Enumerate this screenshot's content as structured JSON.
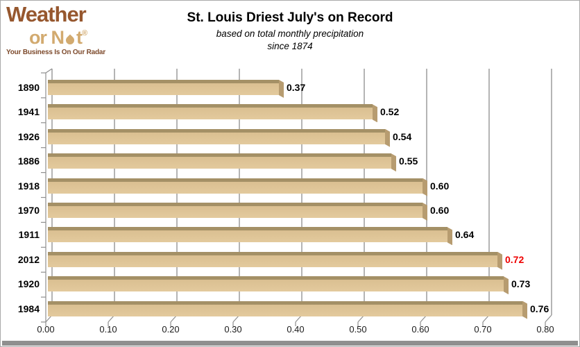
{
  "logo": {
    "line1": "Weather",
    "line2_prefix": "or N",
    "line2_suffix": "t",
    "registered": "®",
    "tagline": "Your Business Is On Our Radar"
  },
  "header": {
    "title": "St. Louis Driest July's on Record",
    "subtitle1": "based on total monthly precipitation",
    "subtitle2": "since 1874"
  },
  "chart_data": {
    "type": "bar",
    "orientation": "horizontal",
    "title": "St. Louis Driest July's on Record",
    "subtitle": "based on total monthly precipitation since 1874",
    "categories": [
      "1890",
      "1941",
      "1926",
      "1886",
      "1918",
      "1970",
      "1911",
      "2012",
      "1920",
      "1984"
    ],
    "values": [
      0.37,
      0.52,
      0.54,
      0.55,
      0.6,
      0.6,
      0.64,
      0.72,
      0.73,
      0.76
    ],
    "value_labels": [
      "0.37",
      "0.52",
      "0.54",
      "0.55",
      "0.60",
      "0.60",
      "0.64",
      "0.72",
      "0.73",
      "0.76"
    ],
    "highlight_category": "2012",
    "highlight_color": "#ee0000",
    "x_ticks": [
      "0.00",
      "0.10",
      "0.20",
      "0.30",
      "0.40",
      "0.50",
      "0.60",
      "0.70",
      "0.80"
    ],
    "xlim": [
      0,
      0.8
    ],
    "xlabel": "",
    "ylabel": "",
    "grid": true,
    "legend": "none",
    "style": "3d-horizontal-bar",
    "bar_color": "#dcc294",
    "bar_top_color": "#a49066",
    "bar_side_color": "#b79c70",
    "gridline_color": "#a2a2a2",
    "axis_color": "#8e8e8e"
  }
}
